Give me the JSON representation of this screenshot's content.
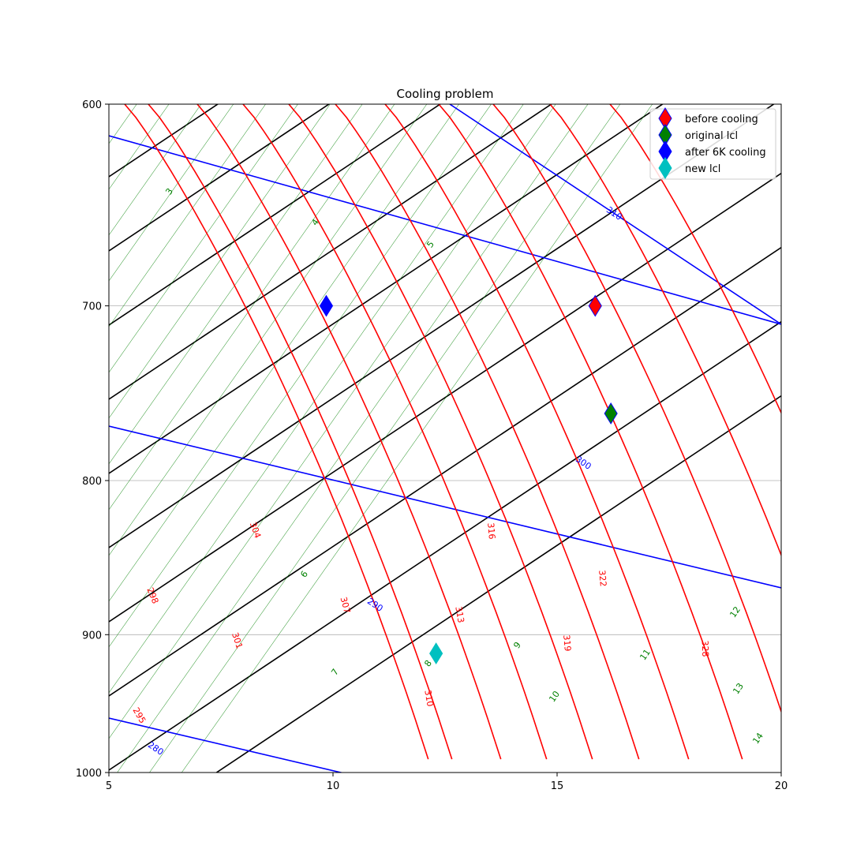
{
  "chart_data": {
    "type": "scatter",
    "title": "Cooling problem",
    "xlabel": "",
    "ylabel": "",
    "xlim": [
      5,
      20
    ],
    "ylim": [
      1000,
      600
    ],
    "y_scale": "log",
    "x_ticks": [
      5,
      10,
      15,
      20
    ],
    "y_ticks": [
      600,
      700,
      800,
      900,
      1000
    ],
    "y_grid": true,
    "legend_position": "top-right",
    "series": [
      {
        "name": "before cooling",
        "x": 15.85,
        "y": 700,
        "color": "#ff0000",
        "edge": "#0000ff"
      },
      {
        "name": "original lcl",
        "x": 16.2,
        "y": 760,
        "color": "#008000",
        "edge": "#0000ff"
      },
      {
        "name": "after 6K cooling",
        "x": 9.85,
        "y": 700,
        "color": "#0000ff",
        "edge": "#0000ff"
      },
      {
        "name": "new lcl",
        "x": 12.3,
        "y": 913,
        "color": "#00c0c0",
        "edge": "#00c0c0"
      }
    ],
    "isentropes": {
      "color": "#ff0000",
      "labels": [
        "295",
        "298",
        "301",
        "304",
        "307",
        "310",
        "313",
        "316",
        "319",
        "322",
        "328"
      ]
    },
    "isotherms": {
      "color": "#0000ff",
      "labels": [
        "280",
        "290",
        "300",
        "310"
      ]
    },
    "mixing_ratio": {
      "color": "#008000",
      "labels": [
        "3",
        "4",
        "5",
        "6",
        "7",
        "8",
        "8",
        "9",
        "10",
        "11",
        "12",
        "13",
        "14"
      ]
    }
  }
}
